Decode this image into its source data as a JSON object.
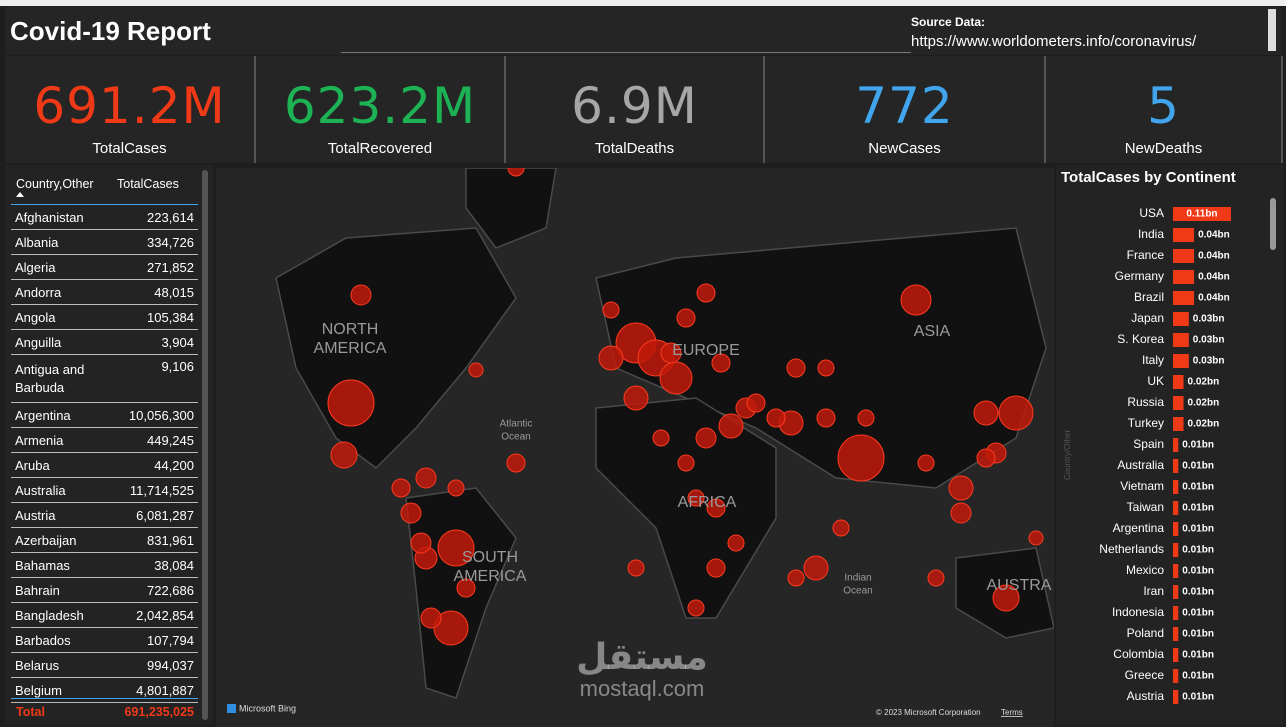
{
  "header": {
    "title": "Covid-19 Report",
    "source_label": "Source Data:",
    "source_url": "https://www.worldometers.info/coronavirus/"
  },
  "kpis": [
    {
      "value": "691.2M",
      "label": "TotalCases",
      "color": "#f03a17"
    },
    {
      "value": "623.2M",
      "label": "TotalRecovered",
      "color": "#1db355"
    },
    {
      "value": "6.9M",
      "label": "TotalDeaths",
      "color": "#a6a6a6"
    },
    {
      "value": "772",
      "label": "NewCases",
      "color": "#41a5ee"
    },
    {
      "value": "5",
      "label": "NewDeaths",
      "color": "#41a5ee"
    }
  ],
  "table": {
    "columns": [
      "Country,Other",
      "TotalCases"
    ],
    "rows": [
      [
        "Afghanistan",
        "223,614"
      ],
      [
        "Albania",
        "334,726"
      ],
      [
        "Algeria",
        "271,852"
      ],
      [
        "Andorra",
        "48,015"
      ],
      [
        "Angola",
        "105,384"
      ],
      [
        "Anguilla",
        "3,904"
      ],
      [
        "Antigua and Barbuda",
        "9,106"
      ],
      [
        "Argentina",
        "10,056,300"
      ],
      [
        "Armenia",
        "449,245"
      ],
      [
        "Aruba",
        "44,200"
      ],
      [
        "Australia",
        "11,714,525"
      ],
      [
        "Austria",
        "6,081,287"
      ],
      [
        "Azerbaijan",
        "831,961"
      ],
      [
        "Bahamas",
        "38,084"
      ],
      [
        "Bahrain",
        "722,686"
      ],
      [
        "Bangladesh",
        "2,042,854"
      ],
      [
        "Barbados",
        "107,794"
      ],
      [
        "Belarus",
        "994,037"
      ],
      [
        "Belgium",
        "4,801,887"
      ]
    ],
    "total": [
      "Total",
      "691,235,025"
    ]
  },
  "map": {
    "labels": [
      "NORTH",
      "AMERICA",
      "SOUTH",
      "AMERICA",
      "EUROPE",
      "AFRICA",
      "ASIA",
      "AUSTRA",
      "Atlantic",
      "Ocean",
      "Indian",
      "Ocean"
    ],
    "bing": "Microsoft Bing",
    "attribution": "© 2023 Microsoft Corporation",
    "terms": "Terms"
  },
  "bar_chart": {
    "type": "bar",
    "title": "TotalCases by Continent",
    "axis_label": "Country/Other",
    "color": "#f03a17",
    "categories": [
      "USA",
      "India",
      "France",
      "Germany",
      "Brazil",
      "Japan",
      "S. Korea",
      "Italy",
      "UK",
      "Russia",
      "Turkey",
      "Spain",
      "Australia",
      "Vietnam",
      "Taiwan",
      "Argentina",
      "Netherlands",
      "Mexico",
      "Iran",
      "Indonesia",
      "Poland",
      "Colombia",
      "Greece",
      "Austria"
    ],
    "values": [
      0.11,
      0.04,
      0.04,
      0.04,
      0.04,
      0.03,
      0.03,
      0.03,
      0.02,
      0.02,
      0.02,
      0.01,
      0.01,
      0.01,
      0.01,
      0.01,
      0.01,
      0.01,
      0.01,
      0.01,
      0.01,
      0.01,
      0.01,
      0.01
    ],
    "value_labels": [
      "0.11bn",
      "0.04bn",
      "0.04bn",
      "0.04bn",
      "0.04bn",
      "0.03bn",
      "0.03bn",
      "0.03bn",
      "0.02bn",
      "0.02bn",
      "0.02bn",
      "0.01bn",
      "0.01bn",
      "0.01bn",
      "0.01bn",
      "0.01bn",
      "0.01bn",
      "0.01bn",
      "0.01bn",
      "0.01bn",
      "0.01bn",
      "0.01bn",
      "0.01bn",
      "0.01bn"
    ]
  },
  "watermark": {
    "arabic": "مستقل",
    "latin": "mostaql.com"
  }
}
